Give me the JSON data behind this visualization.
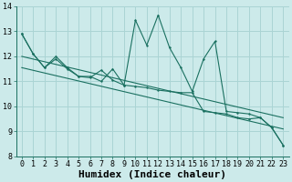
{
  "xlabel": "Humidex (Indice chaleur)",
  "bg_color": "#cceaea",
  "grid_color": "#aad4d4",
  "line_color": "#1a7060",
  "xlim": [
    -0.5,
    23.5
  ],
  "ylim": [
    8,
    14
  ],
  "yticks": [
    8,
    9,
    10,
    11,
    12,
    13,
    14
  ],
  "xticks": [
    0,
    1,
    2,
    3,
    4,
    5,
    6,
    7,
    8,
    9,
    10,
    11,
    12,
    13,
    14,
    15,
    16,
    17,
    18,
    19,
    20,
    21,
    22,
    23
  ],
  "series_zigzag_x": [
    0,
    1,
    2,
    3,
    4,
    5,
    6,
    7,
    8,
    9,
    10,
    11,
    12,
    13,
    14,
    15,
    16,
    17,
    18,
    19,
    20,
    21,
    22,
    23
  ],
  "series_zigzag_y": [
    12.9,
    12.1,
    11.55,
    12.0,
    11.55,
    11.2,
    11.15,
    11.45,
    11.05,
    10.85,
    13.45,
    12.45,
    13.65,
    12.35,
    11.55,
    10.6,
    11.9,
    12.6,
    9.8,
    9.75,
    9.7,
    9.55,
    9.15,
    8.45
  ],
  "series_smooth_x": [
    0,
    1,
    2,
    3,
    4,
    5,
    6,
    7,
    8,
    9,
    10,
    11,
    12,
    13,
    14,
    15,
    16,
    17,
    18,
    19,
    20,
    21,
    22,
    23
  ],
  "series_smooth_y": [
    12.9,
    12.1,
    11.55,
    11.9,
    11.5,
    11.2,
    11.2,
    11.0,
    11.5,
    10.85,
    10.8,
    10.75,
    10.65,
    10.6,
    10.55,
    10.55,
    9.8,
    9.75,
    9.7,
    9.55,
    9.5,
    9.55,
    9.15,
    8.45
  ],
  "trend1_x": [
    0,
    23
  ],
  "trend1_y": [
    12.0,
    9.55
  ],
  "trend2_x": [
    0,
    23
  ],
  "trend2_y": [
    11.55,
    9.1
  ],
  "font_size_xlabel": 8,
  "tick_font_size": 6
}
